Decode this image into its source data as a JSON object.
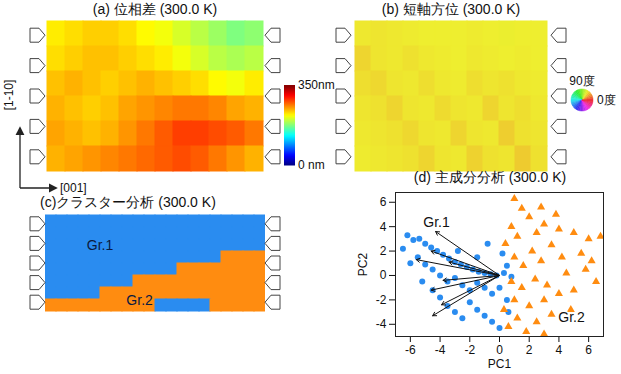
{
  "chart_data": [
    {
      "type": "heatmap",
      "title": "(a) 位相差 (300.0 K)",
      "x_label": "[001]",
      "y_label": "[1-10]",
      "tick_labels": false,
      "cells": [
        [
          225,
          230,
          235,
          235,
          230,
          220,
          215,
          205,
          195,
          185,
          175,
          180
        ],
        [
          230,
          235,
          240,
          240,
          235,
          230,
          225,
          215,
          205,
          195,
          190,
          195
        ],
        [
          240,
          245,
          240,
          235,
          240,
          245,
          240,
          235,
          230,
          220,
          215,
          225
        ],
        [
          245,
          240,
          235,
          240,
          250,
          255,
          260,
          265,
          265,
          260,
          250,
          245
        ],
        [
          250,
          245,
          240,
          245,
          255,
          265,
          275,
          285,
          285,
          280,
          275,
          265
        ],
        [
          245,
          250,
          255,
          260,
          265,
          270,
          275,
          280,
          275,
          265,
          255,
          245
        ]
      ],
      "colorbar": {
        "range": [
          0,
          350
        ],
        "ticks": [
          {
            "value": 350,
            "label": "350nm"
          },
          {
            "value": 0,
            "label": "0 nm"
          }
        ]
      }
    },
    {
      "type": "heatmap",
      "title": "(b) 短軸方位 (300.0 K)",
      "tick_labels": false,
      "cells": [
        [
          58,
          57,
          58,
          59,
          60,
          60,
          60,
          59,
          60,
          61,
          60,
          60
        ],
        [
          52,
          57,
          58,
          56,
          58,
          59,
          60,
          58,
          59,
          60,
          59,
          60
        ],
        [
          55,
          53,
          57,
          58,
          55,
          58,
          59,
          55,
          57,
          56,
          58,
          59
        ],
        [
          57,
          56,
          52,
          57,
          58,
          54,
          57,
          58,
          52,
          57,
          55,
          58
        ],
        [
          58,
          57,
          56,
          53,
          57,
          58,
          52,
          57,
          58,
          50,
          56,
          57
        ],
        [
          59,
          58,
          57,
          56,
          52,
          57,
          58,
          51,
          56,
          57,
          49,
          56
        ]
      ],
      "colorwheel": {
        "range": [
          0,
          360
        ],
        "ticks": [
          {
            "value": 90,
            "label": "90度"
          },
          {
            "value": 0,
            "label": "0度"
          }
        ]
      }
    },
    {
      "type": "heatmap",
      "title": "(c)クラスター分析 (300.0 K)",
      "tick_labels": false,
      "series": [
        {
          "name": "Gr.1",
          "color": "#2a8cf0"
        },
        {
          "name": "Gr.2",
          "color": "#ff8c10"
        }
      ],
      "cells": [
        [
          1,
          1,
          1,
          1,
          1,
          1,
          1,
          1,
          1,
          1,
          1,
          1,
          1,
          1,
          1,
          1,
          1,
          1,
          1,
          1
        ],
        [
          1,
          1,
          1,
          1,
          1,
          1,
          1,
          1,
          1,
          1,
          1,
          1,
          1,
          1,
          1,
          1,
          1,
          1,
          1,
          1
        ],
        [
          1,
          1,
          1,
          1,
          1,
          1,
          1,
          1,
          1,
          1,
          1,
          1,
          1,
          1,
          1,
          1,
          1,
          1,
          1,
          1
        ],
        [
          1,
          1,
          1,
          1,
          1,
          1,
          1,
          1,
          1,
          1,
          1,
          1,
          1,
          1,
          1,
          1,
          2,
          2,
          2,
          2
        ],
        [
          1,
          1,
          1,
          1,
          1,
          1,
          1,
          1,
          1,
          1,
          1,
          1,
          2,
          2,
          2,
          2,
          2,
          2,
          2,
          2
        ],
        [
          1,
          1,
          1,
          1,
          1,
          1,
          1,
          1,
          2,
          2,
          2,
          2,
          2,
          2,
          2,
          2,
          2,
          2,
          2,
          2
        ],
        [
          1,
          1,
          1,
          1,
          1,
          2,
          2,
          2,
          2,
          2,
          2,
          2,
          2,
          2,
          2,
          2,
          2,
          2,
          2,
          2
        ],
        [
          2,
          2,
          2,
          2,
          2,
          2,
          2,
          2,
          2,
          2,
          1,
          1,
          1,
          1,
          1,
          2,
          2,
          2,
          2,
          2
        ]
      ]
    },
    {
      "type": "scatter",
      "title": "(d) 主成分分析 (300.0 K)",
      "x_label": "PC1",
      "y_label": "PC2",
      "xlim": [
        -7,
        7
      ],
      "ylim": [
        -5,
        6.8
      ],
      "xticks": [
        -6,
        -4,
        -2,
        0,
        2,
        4,
        6
      ],
      "yticks": [
        -4,
        -2,
        0,
        2,
        4,
        6
      ],
      "series": [
        {
          "name": "Gr.1",
          "color": "#2a8cf0",
          "marker": "circle",
          "x": [
            -6.2,
            -5.8,
            -5.4,
            -5.0,
            -4.6,
            -4.2,
            -3.8,
            -3.4,
            -3.0,
            -2.6,
            -2.2,
            -1.8,
            -1.4,
            -1.0,
            -0.6,
            -0.2,
            0.3,
            0.8,
            -5.5,
            -5.0,
            -4.5,
            -4.0,
            -3.5,
            -3.0,
            -2.5,
            -2.0,
            -1.5,
            -1.0,
            -0.5,
            0.0,
            0.5,
            -4.0,
            -3.5,
            -3.0,
            -2.5,
            -2.0,
            -1.5,
            -1.0,
            -0.5,
            0.0,
            0.6,
            -6.5,
            -6.0,
            -5.2,
            -4.5,
            -2.8,
            -1.5,
            0.2,
            -0.8,
            0.5
          ],
          "y": [
            3.3,
            2.9,
            3.0,
            2.6,
            2.3,
            2.0,
            1.7,
            1.4,
            1.1,
            0.9,
            0.7,
            0.5,
            0.3,
            0.2,
            0.1,
            0.0,
            0.2,
            -0.1,
            1.5,
            0.9,
            0.5,
            0.0,
            -0.5,
            -0.2,
            -0.8,
            -1.2,
            -0.6,
            -1.0,
            -1.5,
            -1.0,
            -2.0,
            -1.8,
            -2.5,
            -3.0,
            -3.5,
            -2.2,
            -2.8,
            -3.3,
            -3.8,
            -4.3,
            -3.0,
            2.2,
            1.0,
            -0.5,
            -1.2,
            2.0,
            1.5,
            1.8,
            2.6,
            0.8
          ]
        },
        {
          "name": "Gr.2",
          "color": "#ff8c10",
          "marker": "triangle",
          "x": [
            1.0,
            1.5,
            2.0,
            0.8,
            1.2,
            2.5,
            3.0,
            4.0,
            5.0,
            6.0,
            6.8,
            3.5,
            2.2,
            1.0,
            1.6,
            2.8,
            4.2,
            5.5,
            0.8,
            1.5,
            2.4,
            3.2,
            4.5,
            5.8,
            6.5,
            1.0,
            2.0,
            3.0,
            4.0,
            5.0,
            1.2,
            2.5,
            3.5,
            1.8,
            0.6,
            3.0,
            2.8,
            3.8,
            0.4,
            0.3,
            4.8,
            6.2
          ],
          "y": [
            6.3,
            5.5,
            4.8,
            4.0,
            3.2,
            3.5,
            4.2,
            3.8,
            3.5,
            3.0,
            3.2,
            2.5,
            2.0,
            1.5,
            0.8,
            1.2,
            1.5,
            1.8,
            -0.5,
            -1.0,
            -0.3,
            -0.8,
            0.2,
            0.5,
            -0.5,
            -2.0,
            -2.5,
            -2.0,
            -1.5,
            -1.2,
            -3.5,
            -3.8,
            -3.2,
            -4.6,
            -4.2,
            -4.8,
            5.6,
            5.0,
            2.6,
            -2.8,
            -2.8,
            1.2
          ]
        }
      ],
      "loadings": {
        "x": [
          -4.3,
          -4.6,
          -5.6,
          -3.4,
          -3.8,
          -4.6,
          -3.9,
          -4.5
        ],
        "y": [
          3.6,
          2.0,
          1.3,
          1.1,
          -0.4,
          -1.2,
          -2.4,
          -3.3
        ]
      }
    }
  ]
}
